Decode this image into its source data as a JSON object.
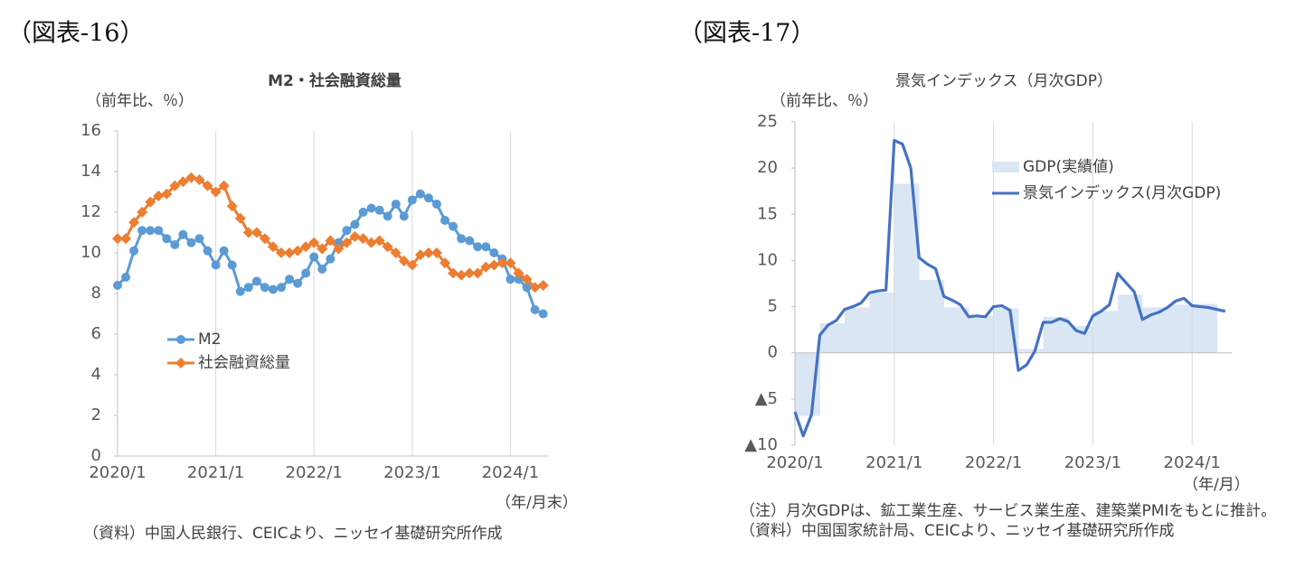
{
  "chart_data": [
    {
      "type": "line",
      "figure_label": "（図表-16）",
      "title": "M2・社会融資総量",
      "y_axis_label": "（前年比、％）",
      "x_axis_label": "（年/月末）",
      "notes": [
        "（資料）中国人民銀行、CEICより、ニッセイ基礎研究所作成"
      ],
      "categories": [
        "2020/1",
        null,
        null,
        null,
        null,
        null,
        null,
        null,
        null,
        null,
        null,
        null,
        "2021/1",
        null,
        null,
        null,
        null,
        null,
        null,
        null,
        null,
        null,
        null,
        null,
        "2022/1",
        null,
        null,
        null,
        null,
        null,
        null,
        null,
        null,
        null,
        null,
        null,
        "2023/1",
        null,
        null,
        null,
        null,
        null,
        null,
        null,
        null,
        null,
        null,
        null,
        "2024/1",
        null,
        null,
        null,
        null
      ],
      "series": [
        {
          "name": "M2",
          "color": "#5b9bd5",
          "marker": "circle",
          "values": [
            8.4,
            8.8,
            10.1,
            11.1,
            11.1,
            11.1,
            10.7,
            10.4,
            10.9,
            10.5,
            10.7,
            10.1,
            9.4,
            10.1,
            9.4,
            8.1,
            8.3,
            8.6,
            8.3,
            8.2,
            8.3,
            8.7,
            8.5,
            9.0,
            9.8,
            9.2,
            9.7,
            10.5,
            11.1,
            11.4,
            12.0,
            12.2,
            12.1,
            11.8,
            12.4,
            11.8,
            12.6,
            12.9,
            12.7,
            12.4,
            11.6,
            11.3,
            10.7,
            10.6,
            10.3,
            10.3,
            10.0,
            9.7,
            8.7,
            8.7,
            8.3,
            7.2,
            7.0
          ]
        },
        {
          "name": "社会融資総量",
          "color": "#ed7d31",
          "marker": "diamond",
          "values": [
            10.7,
            10.7,
            11.5,
            12.0,
            12.5,
            12.8,
            12.9,
            13.3,
            13.5,
            13.7,
            13.6,
            13.3,
            13.0,
            13.3,
            12.3,
            11.7,
            11.0,
            11.0,
            10.7,
            10.3,
            10.0,
            10.0,
            10.1,
            10.3,
            10.5,
            10.2,
            10.6,
            10.2,
            10.5,
            10.8,
            10.7,
            10.5,
            10.6,
            10.3,
            10.0,
            9.6,
            9.4,
            9.9,
            10.0,
            10.0,
            9.5,
            9.0,
            8.9,
            9.0,
            9.0,
            9.3,
            9.4,
            9.5,
            9.5,
            9.0,
            8.7,
            8.3,
            8.4
          ]
        }
      ],
      "ylim": [
        0,
        16
      ],
      "yticks": [
        0,
        2,
        4,
        6,
        8,
        10,
        12,
        14,
        16
      ],
      "grid": "x",
      "legend": "left"
    },
    {
      "type": "line",
      "figure_label": "（図表-17）",
      "title": "景気インデックス（月次GDP）",
      "y_axis_label": "（前年比、％）",
      "x_axis_label": "（年/月）",
      "notes": [
        "（注）月次GDPは、鉱工業生産、サービス業生産、建築業PMIをもとに推計。",
        "（資料）中国国家統計局、CEICより、ニッセイ基礎研究所作成"
      ],
      "categories": [
        "2020/1",
        null,
        null,
        null,
        null,
        null,
        null,
        null,
        null,
        null,
        null,
        null,
        "2021/1",
        null,
        null,
        null,
        null,
        null,
        null,
        null,
        null,
        null,
        null,
        null,
        "2022/1",
        null,
        null,
        null,
        null,
        null,
        null,
        null,
        null,
        null,
        null,
        null,
        "2023/1",
        null,
        null,
        null,
        null,
        null,
        null,
        null,
        null,
        null,
        null,
        null,
        "2024/1",
        null,
        null,
        null,
        null
      ],
      "series": [
        {
          "name": "GDP(実績値)",
          "type": "area",
          "color": "#dae6f4",
          "values": [
            -6.8,
            -6.8,
            -6.8,
            3.2,
            3.2,
            3.2,
            4.9,
            4.9,
            4.9,
            6.5,
            6.5,
            6.5,
            18.3,
            18.3,
            18.3,
            7.9,
            7.9,
            7.9,
            4.9,
            4.9,
            4.9,
            4.0,
            4.0,
            4.0,
            4.8,
            4.8,
            4.8,
            0.4,
            0.4,
            0.4,
            3.9,
            3.9,
            3.9,
            2.9,
            2.9,
            2.9,
            4.5,
            4.5,
            4.5,
            6.3,
            6.3,
            6.3,
            4.9,
            4.9,
            4.9,
            5.2,
            5.2,
            5.2,
            5.3,
            5.3,
            5.3,
            null,
            null
          ]
        },
        {
          "name": "景気インデックス(月次GDP)",
          "type": "line",
          "color": "#4472c4",
          "values": [
            -6.4,
            -9.0,
            -6.7,
            1.9,
            3.0,
            3.5,
            4.7,
            5.0,
            5.4,
            6.5,
            6.7,
            6.8,
            23.0,
            22.6,
            20.0,
            10.3,
            9.6,
            9.1,
            6.1,
            5.7,
            5.2,
            3.9,
            4.0,
            3.9,
            5.0,
            5.1,
            4.6,
            -1.9,
            -1.3,
            0.2,
            3.3,
            3.3,
            3.7,
            3.4,
            2.4,
            2.1,
            4.0,
            4.5,
            5.2,
            8.6,
            7.6,
            6.6,
            3.6,
            4.1,
            4.4,
            4.9,
            5.6,
            5.9,
            5.1,
            5.0,
            4.9,
            4.7,
            4.5
          ]
        }
      ],
      "ylim": [
        -10,
        25
      ],
      "yticks": [
        25,
        20,
        15,
        10,
        5,
        0,
        {
          "value": -5,
          "label": "▲5"
        },
        {
          "value": -10,
          "label": "▲10"
        }
      ],
      "grid": "x",
      "legend": "top-right"
    }
  ]
}
